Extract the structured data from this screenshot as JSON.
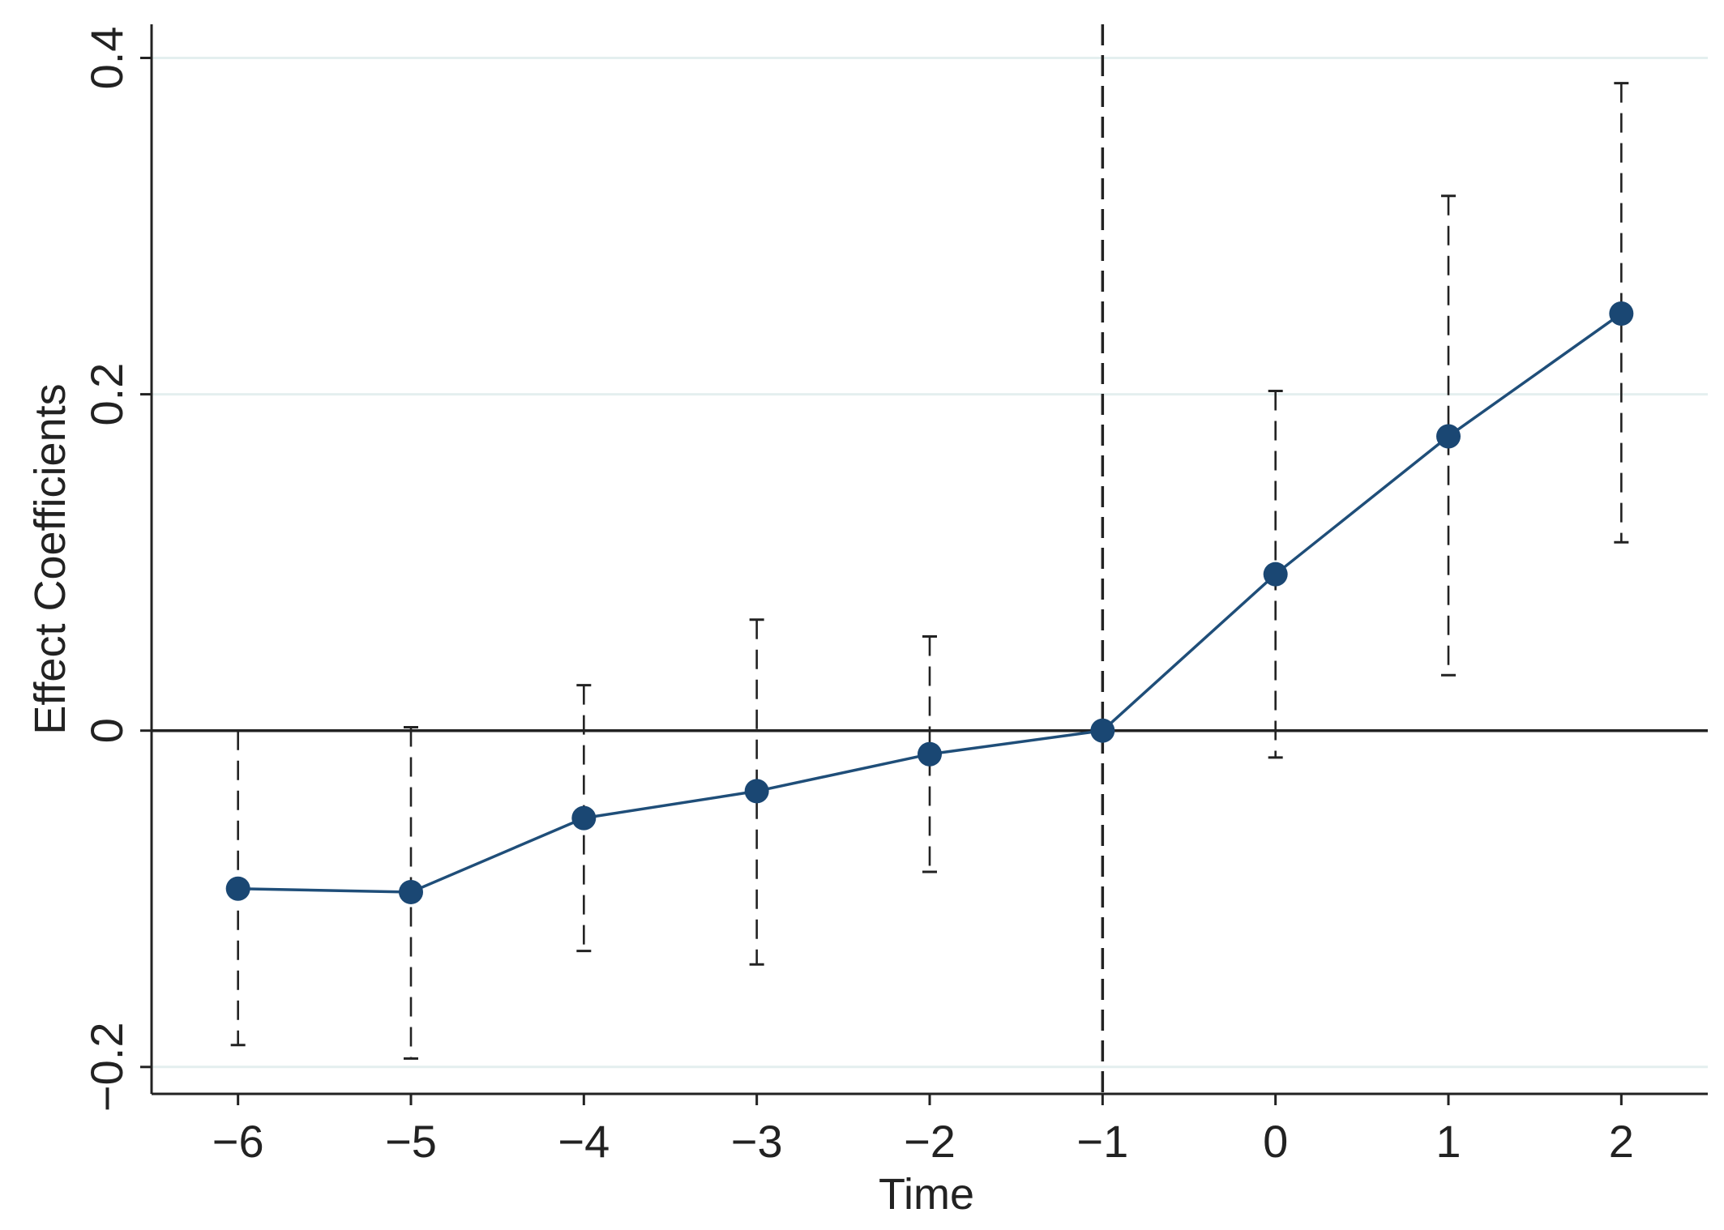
{
  "chart_data": {
    "type": "line",
    "title": "",
    "xlabel": "Time",
    "ylabel": "Effect Coefficients",
    "x": [
      -6,
      -5,
      -4,
      -3,
      -2,
      -1,
      0,
      1,
      2
    ],
    "x_ticks": [
      "−6",
      "−5",
      "−4",
      "−3",
      "−2",
      "−1",
      "0",
      "1",
      "2"
    ],
    "y_ticks": [
      {
        "value": 0.4,
        "label": "0.4"
      },
      {
        "value": 0.2,
        "label": "0.2"
      },
      {
        "value": 0,
        "label": "0"
      },
      {
        "value": -0.2,
        "label": "−0.2"
      }
    ],
    "xlim": [
      -6.5,
      2.5
    ],
    "ylim": [
      -0.216,
      0.42
    ],
    "grid": true,
    "reference_lines": {
      "vertical_x": -1,
      "horizontal_y": 0
    },
    "series": [
      {
        "values": [
          -0.094,
          -0.096,
          -0.052,
          -0.036,
          -0.014,
          0,
          0.093,
          0.175,
          0.248
        ],
        "ci_lower": [
          -0.187,
          -0.195,
          -0.131,
          -0.139,
          -0.084,
          0,
          -0.016,
          0.033,
          0.112
        ],
        "ci_upper": [
          0,
          0.002,
          0.027,
          0.066,
          0.056,
          0,
          0.202,
          0.318,
          0.385
        ]
      }
    ],
    "colors": {
      "series": "#1f4e79",
      "marker": "#1a4773",
      "grid": "#e4efef",
      "axis": "#222222",
      "ci": "#222222"
    }
  }
}
